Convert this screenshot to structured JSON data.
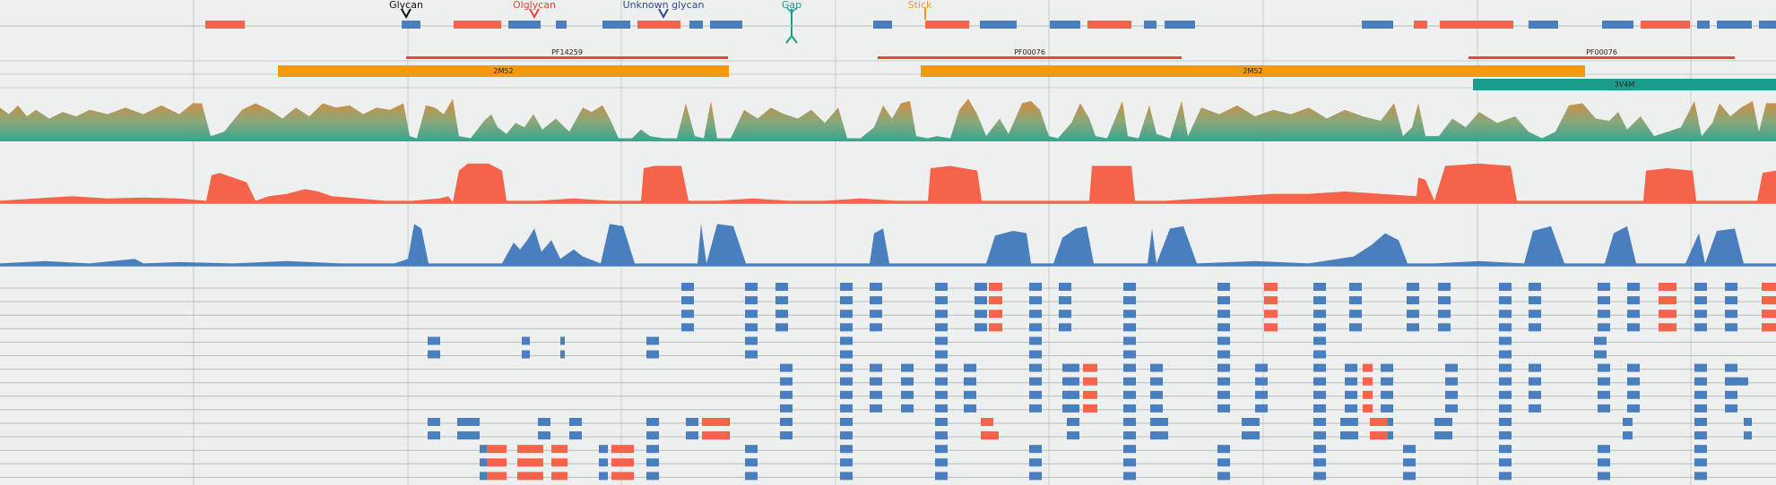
{
  "legend": {
    "items": [
      {
        "key": "glycan",
        "label": "Glycan",
        "color": "#111111",
        "icon": "glycan-marker-icon"
      },
      {
        "key": "oglycan",
        "label": "Olglycan",
        "color": "#e8453c",
        "icon": "o-glycan-marker-icon"
      },
      {
        "key": "unknown",
        "label": "Unknown glycan",
        "color": "#2a4d8f",
        "icon": "unknown-glycan-marker-icon"
      },
      {
        "key": "gap",
        "label": "Gap",
        "color": "#1a9d8a",
        "icon": "gap-marker-icon"
      },
      {
        "key": "stick",
        "label": "Stick",
        "color": "#f59a23",
        "icon": "stick-marker-icon"
      }
    ]
  },
  "domains": [
    {
      "label": "PF14259",
      "row": 0
    },
    {
      "label": "PF00076",
      "row": 0
    },
    {
      "label": "PF00076",
      "row": 0
    }
  ],
  "structures": [
    {
      "label": "2M52",
      "row": 1
    },
    {
      "label": "2M52",
      "row": 1
    },
    {
      "label": "3V4M",
      "row": 2
    }
  ],
  "colors": {
    "background": "#eef0f0",
    "blue": "#4a7fbf",
    "red": "#f4634a",
    "orange": "#f59a10",
    "teal": "#1a9d8a",
    "domain_line": "#e8453c",
    "grid": "#c8cccc"
  }
}
